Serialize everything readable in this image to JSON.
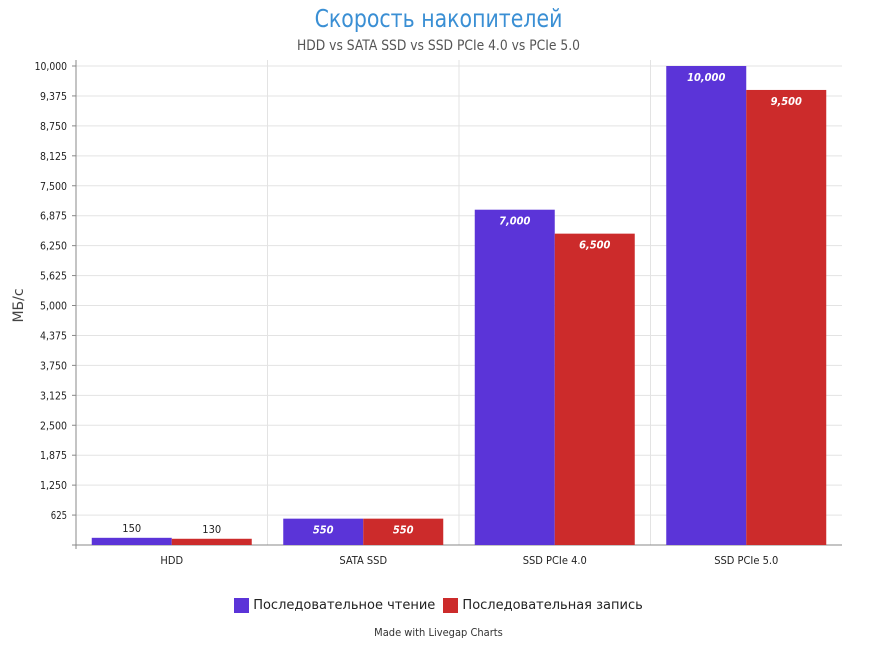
{
  "chart_data": {
    "type": "bar",
    "title": "Скорость накопителей",
    "subtitle": "HDD vs SATA SSD vs SSD PCIe 4.0 vs PCIe 5.0",
    "ylabel": "МБ/с",
    "ylim": [
      0,
      10000
    ],
    "yticks": [
      "625",
      "1,250",
      "1,875",
      "2,500",
      "3,125",
      "3,750",
      "4,375",
      "5,000",
      "5,625",
      "6,250",
      "6,875",
      "7,500",
      "8,125",
      "8,750",
      "9,375",
      "10,000"
    ],
    "categories": [
      "HDD",
      "SATA SSD",
      "SSD PCIe 4.0",
      "SSD PCIe 5.0"
    ],
    "series": [
      {
        "name": "Последовательное чтение",
        "color": "#5b34d8",
        "values": [
          150,
          550,
          7000,
          10000
        ],
        "labels": [
          "150",
          "550",
          "7,000",
          "10,000"
        ]
      },
      {
        "name": "Последовательная запись",
        "color": "#cc2b2b",
        "values": [
          130,
          550,
          6500,
          9500
        ],
        "labels": [
          "130",
          "550",
          "6,500",
          "9,500"
        ]
      }
    ],
    "grid": true,
    "legend": "bottom"
  },
  "credit": "Made with Livegap Charts"
}
